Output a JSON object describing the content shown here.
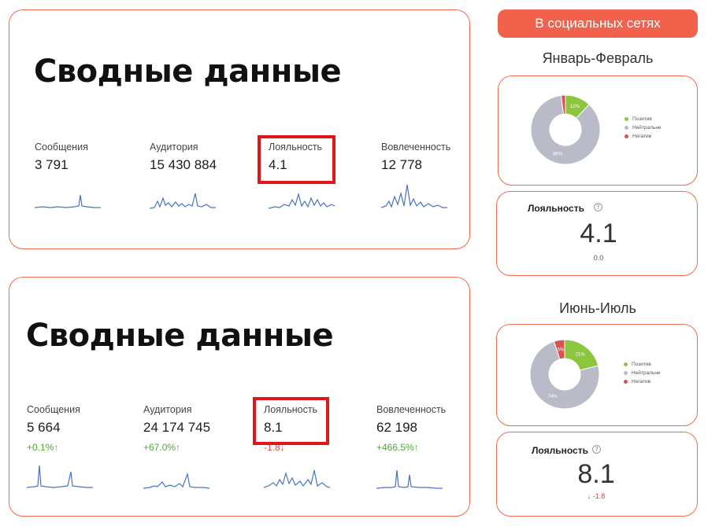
{
  "panels": [
    {
      "title": "Сводные данные",
      "metrics": [
        {
          "label": "Сообщения",
          "value": "3 791"
        },
        {
          "label": "Аудитория",
          "value": "15 430 884"
        },
        {
          "label": "Лояльность",
          "value": "4.1"
        },
        {
          "label": "Вовлеченность",
          "value": "12 778"
        }
      ]
    },
    {
      "title": "Сводные данные",
      "metrics": [
        {
          "label": "Сообщения",
          "value": "5 664",
          "delta": "+0.1%↑",
          "trend": "up"
        },
        {
          "label": "Аудитория",
          "value": "24 174 745",
          "delta": "+67.0%↑",
          "trend": "up"
        },
        {
          "label": "Лояльность",
          "value": "8.1",
          "delta": "-1.8↓",
          "trend": "down"
        },
        {
          "label": "Вовлеченность",
          "value": "62 198",
          "delta": "+466.5%↑",
          "trend": "up"
        }
      ]
    }
  ],
  "social": {
    "header": "В социальных сетях",
    "periods": [
      {
        "name": "Январь-Февраль",
        "sentiment": {
          "legend": [
            "Позитив",
            "Нейтральне",
            "Негатив"
          ],
          "slices": [
            {
              "name": "Позитив",
              "value": 12,
              "label": "12%"
            },
            {
              "name": "Нейтральне",
              "value": 86,
              "label": "86%"
            },
            {
              "name": "Негатив",
              "value": 2,
              "label": ""
            }
          ]
        },
        "loyalty": {
          "label": "Лояльность",
          "value": "4.1",
          "change": "0.0"
        }
      },
      {
        "name": "Июнь-Июль",
        "sentiment": {
          "legend": [
            "Позитив",
            "Нейтральне",
            "Негатив"
          ],
          "slices": [
            {
              "name": "Позитив",
              "value": 21,
              "label": "21%"
            },
            {
              "name": "Нейтральне",
              "value": 74,
              "label": "74%"
            },
            {
              "name": "Негатив",
              "value": 5,
              "label": "5%"
            }
          ]
        },
        "loyalty": {
          "label": "Лояльность",
          "value": "8.1",
          "change": "↓ -1.8"
        }
      }
    ]
  },
  "colors": {
    "accent": "#f2614b",
    "border": "#ef6b52",
    "highlight": "#e0161b",
    "positive": "#8cc63f",
    "neutral": "#b9bcc8",
    "negative": "#d9534f",
    "spark": "#4a72c4",
    "up": "#4fa834",
    "down": "#d24b4b"
  },
  "icons": {
    "help": "question-circle-icon"
  }
}
